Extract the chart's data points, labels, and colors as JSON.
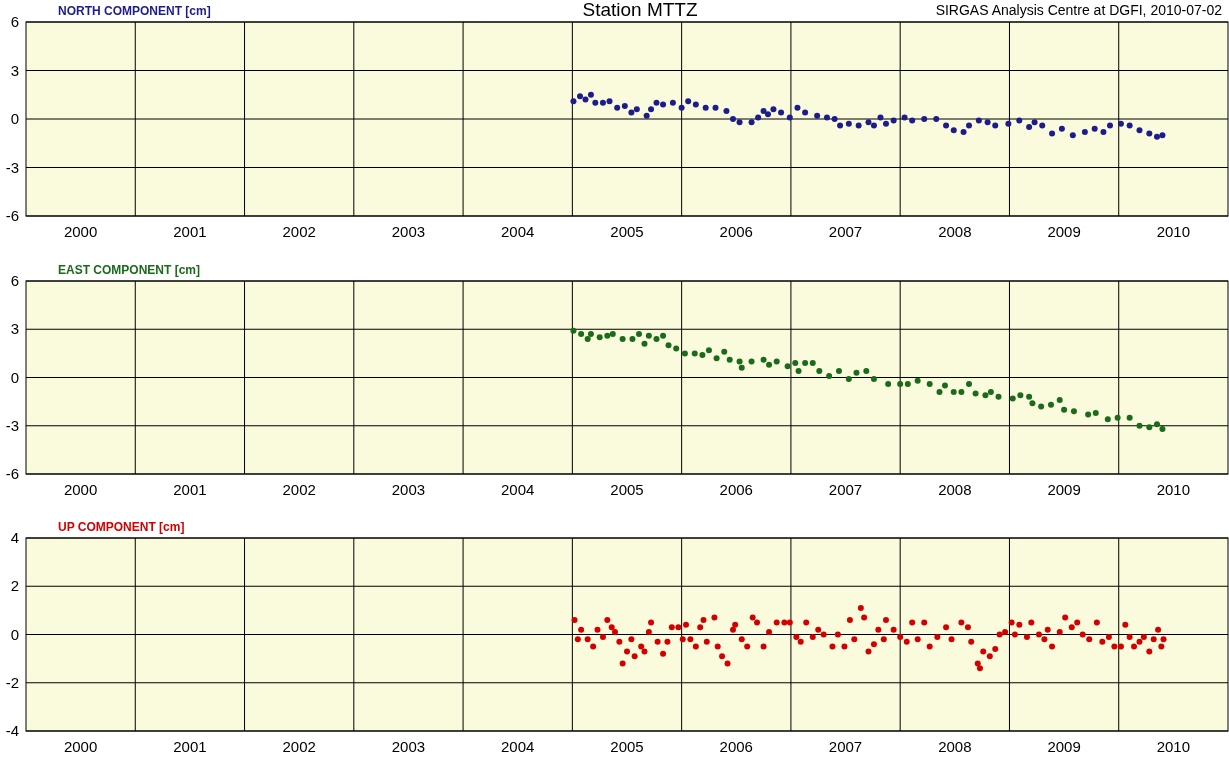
{
  "chart_data": [
    {
      "type": "scatter",
      "title": "Station MTTZ",
      "ylabel": "NORTH COMPONENT [cm]",
      "annotations": [
        "SIRGAS Analysis Centre at DGFI, 2010-07-02"
      ],
      "xlim": [
        2000,
        2011
      ],
      "ylim": [
        -6,
        6
      ],
      "yticks": [
        -6,
        -3,
        0,
        3,
        6
      ],
      "xticks": [
        {
          "value": 2000.5,
          "label": "2000"
        },
        {
          "value": 2001,
          "label": null
        },
        {
          "value": 2001.5,
          "label": "2001"
        },
        {
          "value": 2002,
          "label": null
        },
        {
          "value": 2002.5,
          "label": "2002"
        },
        {
          "value": 2003,
          "label": null
        },
        {
          "value": 2003.5,
          "label": "2003"
        },
        {
          "value": 2004,
          "label": null
        },
        {
          "value": 2004.5,
          "label": "2004"
        },
        {
          "value": 2005,
          "label": null
        },
        {
          "value": 2005.5,
          "label": "2005"
        },
        {
          "value": 2006,
          "label": null
        },
        {
          "value": 2006.5,
          "label": "2006"
        },
        {
          "value": 2007,
          "label": null
        },
        {
          "value": 2007.5,
          "label": "2007"
        },
        {
          "value": 2008,
          "label": null
        },
        {
          "value": 2008.5,
          "label": "2008"
        },
        {
          "value": 2009,
          "label": null
        },
        {
          "value": 2009.5,
          "label": "2009"
        },
        {
          "value": 2010,
          "label": null
        },
        {
          "value": 2010.5,
          "label": "2010"
        }
      ],
      "grid": true,
      "marker": "circle",
      "series": [
        {
          "color": "#1c1c8c",
          "x": [
            2005.01,
            2005.07,
            2005.12,
            2005.17,
            2005.21,
            2005.28,
            2005.34,
            2005.41,
            2005.48,
            2005.54,
            2005.59,
            2005.68,
            2005.72,
            2005.77,
            2005.83,
            2005.92,
            2006.0,
            2006.06,
            2006.13,
            2006.22,
            2006.31,
            2006.41,
            2006.47,
            2006.53,
            2006.64,
            2006.7,
            2006.75,
            2006.79,
            2006.84,
            2006.91,
            2006.99,
            2007.06,
            2007.13,
            2007.24,
            2007.33,
            2007.4,
            2007.45,
            2007.53,
            2007.62,
            2007.71,
            2007.76,
            2007.82,
            2007.87,
            2007.94,
            2008.04,
            2008.11,
            2008.22,
            2008.33,
            2008.42,
            2008.49,
            2008.58,
            2008.63,
            2008.72,
            2008.8,
            2008.87,
            2008.99,
            2009.09,
            2009.18,
            2009.23,
            2009.3,
            2009.39,
            2009.48,
            2009.58,
            2009.69,
            2009.78,
            2009.86,
            2009.92,
            2010.02,
            2010.1,
            2010.19,
            2010.28,
            2010.35,
            2010.4
          ],
          "values": [
            1.1,
            1.4,
            1.2,
            1.5,
            1.0,
            1.0,
            1.1,
            0.7,
            0.8,
            0.4,
            0.6,
            0.2,
            0.6,
            1.0,
            0.9,
            1.0,
            0.7,
            1.1,
            0.9,
            0.7,
            0.7,
            0.5,
            0.0,
            -0.2,
            -0.2,
            0.1,
            0.5,
            0.3,
            0.6,
            0.4,
            0.1,
            0.7,
            0.4,
            0.2,
            0.1,
            0.0,
            -0.4,
            -0.3,
            -0.4,
            -0.2,
            -0.4,
            0.1,
            -0.3,
            -0.1,
            0.1,
            -0.1,
            0.0,
            0.0,
            -0.4,
            -0.7,
            -0.8,
            -0.4,
            -0.1,
            -0.2,
            -0.4,
            -0.3,
            -0.1,
            -0.5,
            -0.2,
            -0.4,
            -0.9,
            -0.6,
            -1.0,
            -0.8,
            -0.6,
            -0.8,
            -0.4,
            -0.3,
            -0.4,
            -0.7,
            -0.9,
            -1.1,
            -1.0
          ]
        }
      ]
    },
    {
      "type": "scatter",
      "ylabel": "EAST COMPONENT [cm]",
      "xlim": [
        2000,
        2011
      ],
      "ylim": [
        -6,
        6
      ],
      "yticks": [
        -6,
        -3,
        0,
        3,
        6
      ],
      "xticks": [
        {
          "value": 2000.5,
          "label": "2000"
        },
        {
          "value": 2001,
          "label": null
        },
        {
          "value": 2001.5,
          "label": "2001"
        },
        {
          "value": 2002,
          "label": null
        },
        {
          "value": 2002.5,
          "label": "2002"
        },
        {
          "value": 2003,
          "label": null
        },
        {
          "value": 2003.5,
          "label": "2003"
        },
        {
          "value": 2004,
          "label": null
        },
        {
          "value": 2004.5,
          "label": "2004"
        },
        {
          "value": 2005,
          "label": null
        },
        {
          "value": 2005.5,
          "label": "2005"
        },
        {
          "value": 2006,
          "label": null
        },
        {
          "value": 2006.5,
          "label": "2006"
        },
        {
          "value": 2007,
          "label": null
        },
        {
          "value": 2007.5,
          "label": "2007"
        },
        {
          "value": 2008,
          "label": null
        },
        {
          "value": 2008.5,
          "label": "2008"
        },
        {
          "value": 2009,
          "label": null
        },
        {
          "value": 2009.5,
          "label": "2009"
        },
        {
          "value": 2010,
          "label": null
        },
        {
          "value": 2010.5,
          "label": "2010"
        }
      ],
      "grid": true,
      "marker": "circle",
      "series": [
        {
          "color": "#1a6b1a",
          "x": [
            2005.01,
            2005.08,
            2005.14,
            2005.17,
            2005.25,
            2005.32,
            2005.37,
            2005.46,
            2005.55,
            2005.61,
            2005.66,
            2005.7,
            2005.77,
            2005.83,
            2005.88,
            2005.95,
            2006.03,
            2006.12,
            2006.19,
            2006.25,
            2006.32,
            2006.39,
            2006.44,
            2006.53,
            2006.55,
            2006.64,
            2006.75,
            2006.8,
            2006.87,
            2006.97,
            2007.04,
            2007.07,
            2007.13,
            2007.2,
            2007.26,
            2007.35,
            2007.44,
            2007.53,
            2007.6,
            2007.69,
            2007.76,
            2007.89,
            2008.0,
            2008.07,
            2008.16,
            2008.27,
            2008.36,
            2008.41,
            2008.49,
            2008.56,
            2008.63,
            2008.69,
            2008.78,
            2008.83,
            2008.9,
            2009.03,
            2009.1,
            2009.18,
            2009.21,
            2009.29,
            2009.38,
            2009.46,
            2009.5,
            2009.59,
            2009.72,
            2009.79,
            2009.9,
            2009.99,
            2010.1,
            2010.19,
            2010.28,
            2010.35,
            2010.4
          ],
          "values": [
            2.9,
            2.7,
            2.4,
            2.7,
            2.5,
            2.6,
            2.7,
            2.4,
            2.4,
            2.7,
            2.1,
            2.6,
            2.4,
            2.6,
            2.0,
            1.8,
            1.5,
            1.5,
            1.4,
            1.7,
            1.2,
            1.6,
            1.1,
            1.0,
            0.6,
            1.0,
            1.1,
            0.8,
            1.0,
            0.7,
            0.9,
            0.4,
            0.9,
            0.9,
            0.4,
            0.1,
            0.4,
            -0.1,
            0.3,
            0.4,
            -0.1,
            -0.4,
            -0.4,
            -0.4,
            -0.2,
            -0.4,
            -0.9,
            -0.5,
            -0.9,
            -0.9,
            -0.4,
            -1.0,
            -1.1,
            -0.9,
            -1.2,
            -1.3,
            -1.1,
            -1.2,
            -1.6,
            -1.8,
            -1.7,
            -1.4,
            -2.0,
            -2.1,
            -2.3,
            -2.2,
            -2.6,
            -2.5,
            -2.5,
            -3.0,
            -3.1,
            -2.9,
            -3.2
          ]
        }
      ]
    },
    {
      "type": "scatter",
      "ylabel": "UP COMPONENT [cm]",
      "xlim": [
        2000,
        2011
      ],
      "ylim": [
        -4,
        4
      ],
      "yticks": [
        -4,
        -2,
        0,
        2,
        4
      ],
      "xticks": [
        {
          "value": 2000.5,
          "label": "2000"
        },
        {
          "value": 2001,
          "label": null
        },
        {
          "value": 2001.5,
          "label": "2001"
        },
        {
          "value": 2002,
          "label": null
        },
        {
          "value": 2002.5,
          "label": "2002"
        },
        {
          "value": 2003,
          "label": null
        },
        {
          "value": 2003.5,
          "label": "2003"
        },
        {
          "value": 2004,
          "label": null
        },
        {
          "value": 2004.5,
          "label": "2004"
        },
        {
          "value": 2005,
          "label": null
        },
        {
          "value": 2005.5,
          "label": "2005"
        },
        {
          "value": 2006,
          "label": null
        },
        {
          "value": 2006.5,
          "label": "2006"
        },
        {
          "value": 2007,
          "label": null
        },
        {
          "value": 2007.5,
          "label": "2007"
        },
        {
          "value": 2008,
          "label": null
        },
        {
          "value": 2008.5,
          "label": "2008"
        },
        {
          "value": 2009,
          "label": null
        },
        {
          "value": 2009.5,
          "label": "2009"
        },
        {
          "value": 2010,
          "label": null
        },
        {
          "value": 2010.5,
          "label": "2010"
        }
      ],
      "grid": true,
      "marker": "circle",
      "series": [
        {
          "color": "#d40000",
          "x": [
            2005.02,
            2005.05,
            2005.08,
            2005.14,
            2005.19,
            2005.23,
            2005.28,
            2005.32,
            2005.36,
            2005.39,
            2005.43,
            2005.46,
            2005.5,
            2005.54,
            2005.57,
            2005.63,
            2005.66,
            2005.7,
            2005.72,
            2005.78,
            2005.83,
            2005.87,
            2005.91,
            2005.97,
            2006.01,
            2006.04,
            2006.08,
            2006.13,
            2006.17,
            2006.2,
            2006.23,
            2006.3,
            2006.33,
            2006.37,
            2006.42,
            2006.47,
            2006.49,
            2006.55,
            2006.6,
            2006.65,
            2006.69,
            2006.75,
            2006.8,
            2006.87,
            2006.94,
            2006.99,
            2007.05,
            2007.09,
            2007.14,
            2007.2,
            2007.25,
            2007.3,
            2007.38,
            2007.43,
            2007.49,
            2007.54,
            2007.58,
            2007.64,
            2007.67,
            2007.71,
            2007.76,
            2007.8,
            2007.85,
            2007.87,
            2007.94,
            2008.0,
            2008.06,
            2008.11,
            2008.16,
            2008.22,
            2008.27,
            2008.34,
            2008.42,
            2008.47,
            2008.56,
            2008.62,
            2008.65,
            2008.71,
            2008.73,
            2008.76,
            2008.82,
            2008.87,
            2008.91,
            2008.96,
            2009.02,
            2009.05,
            2009.09,
            2009.16,
            2009.2,
            2009.27,
            2009.32,
            2009.35,
            2009.39,
            2009.46,
            2009.51,
            2009.57,
            2009.62,
            2009.67,
            2009.73,
            2009.8,
            2009.85,
            2009.91,
            2009.96,
            2010.02,
            2010.06,
            2010.1,
            2010.14,
            2010.19,
            2010.23,
            2010.28,
            2010.32,
            2010.36,
            2010.39,
            2010.41
          ],
          "values": [
            0.6,
            -0.2,
            0.2,
            -0.2,
            -0.5,
            0.2,
            -0.1,
            0.6,
            0.3,
            0.1,
            -0.3,
            -1.2,
            -0.7,
            -0.2,
            -0.9,
            -0.5,
            -0.7,
            0.1,
            0.5,
            -0.3,
            -0.8,
            -0.3,
            0.3,
            0.3,
            -0.2,
            0.4,
            -0.2,
            -0.5,
            0.3,
            0.6,
            -0.3,
            0.7,
            -0.5,
            -0.9,
            -1.2,
            0.2,
            0.4,
            -0.2,
            -0.5,
            0.7,
            0.5,
            -0.5,
            0.1,
            0.5,
            0.5,
            0.5,
            -0.1,
            -0.3,
            0.5,
            -0.1,
            0.2,
            0.0,
            -0.5,
            0.0,
            -0.5,
            0.6,
            -0.2,
            1.1,
            0.7,
            -0.7,
            -0.4,
            0.2,
            -0.2,
            0.6,
            0.2,
            -0.1,
            -0.3,
            0.5,
            -0.2,
            0.5,
            -0.5,
            -0.1,
            0.3,
            -0.2,
            0.5,
            0.3,
            -0.3,
            -1.2,
            -1.4,
            -0.7,
            -0.9,
            -0.6,
            0.0,
            0.1,
            0.5,
            0.0,
            0.4,
            -0.1,
            0.5,
            0.0,
            -0.2,
            0.2,
            -0.5,
            0.1,
            0.7,
            0.3,
            0.5,
            0.0,
            -0.2,
            0.5,
            -0.3,
            -0.1,
            -0.5,
            -0.5,
            0.4,
            -0.1,
            -0.5,
            -0.3,
            -0.1,
            -0.7,
            -0.2,
            0.2,
            -0.5,
            -0.2
          ]
        }
      ]
    }
  ]
}
